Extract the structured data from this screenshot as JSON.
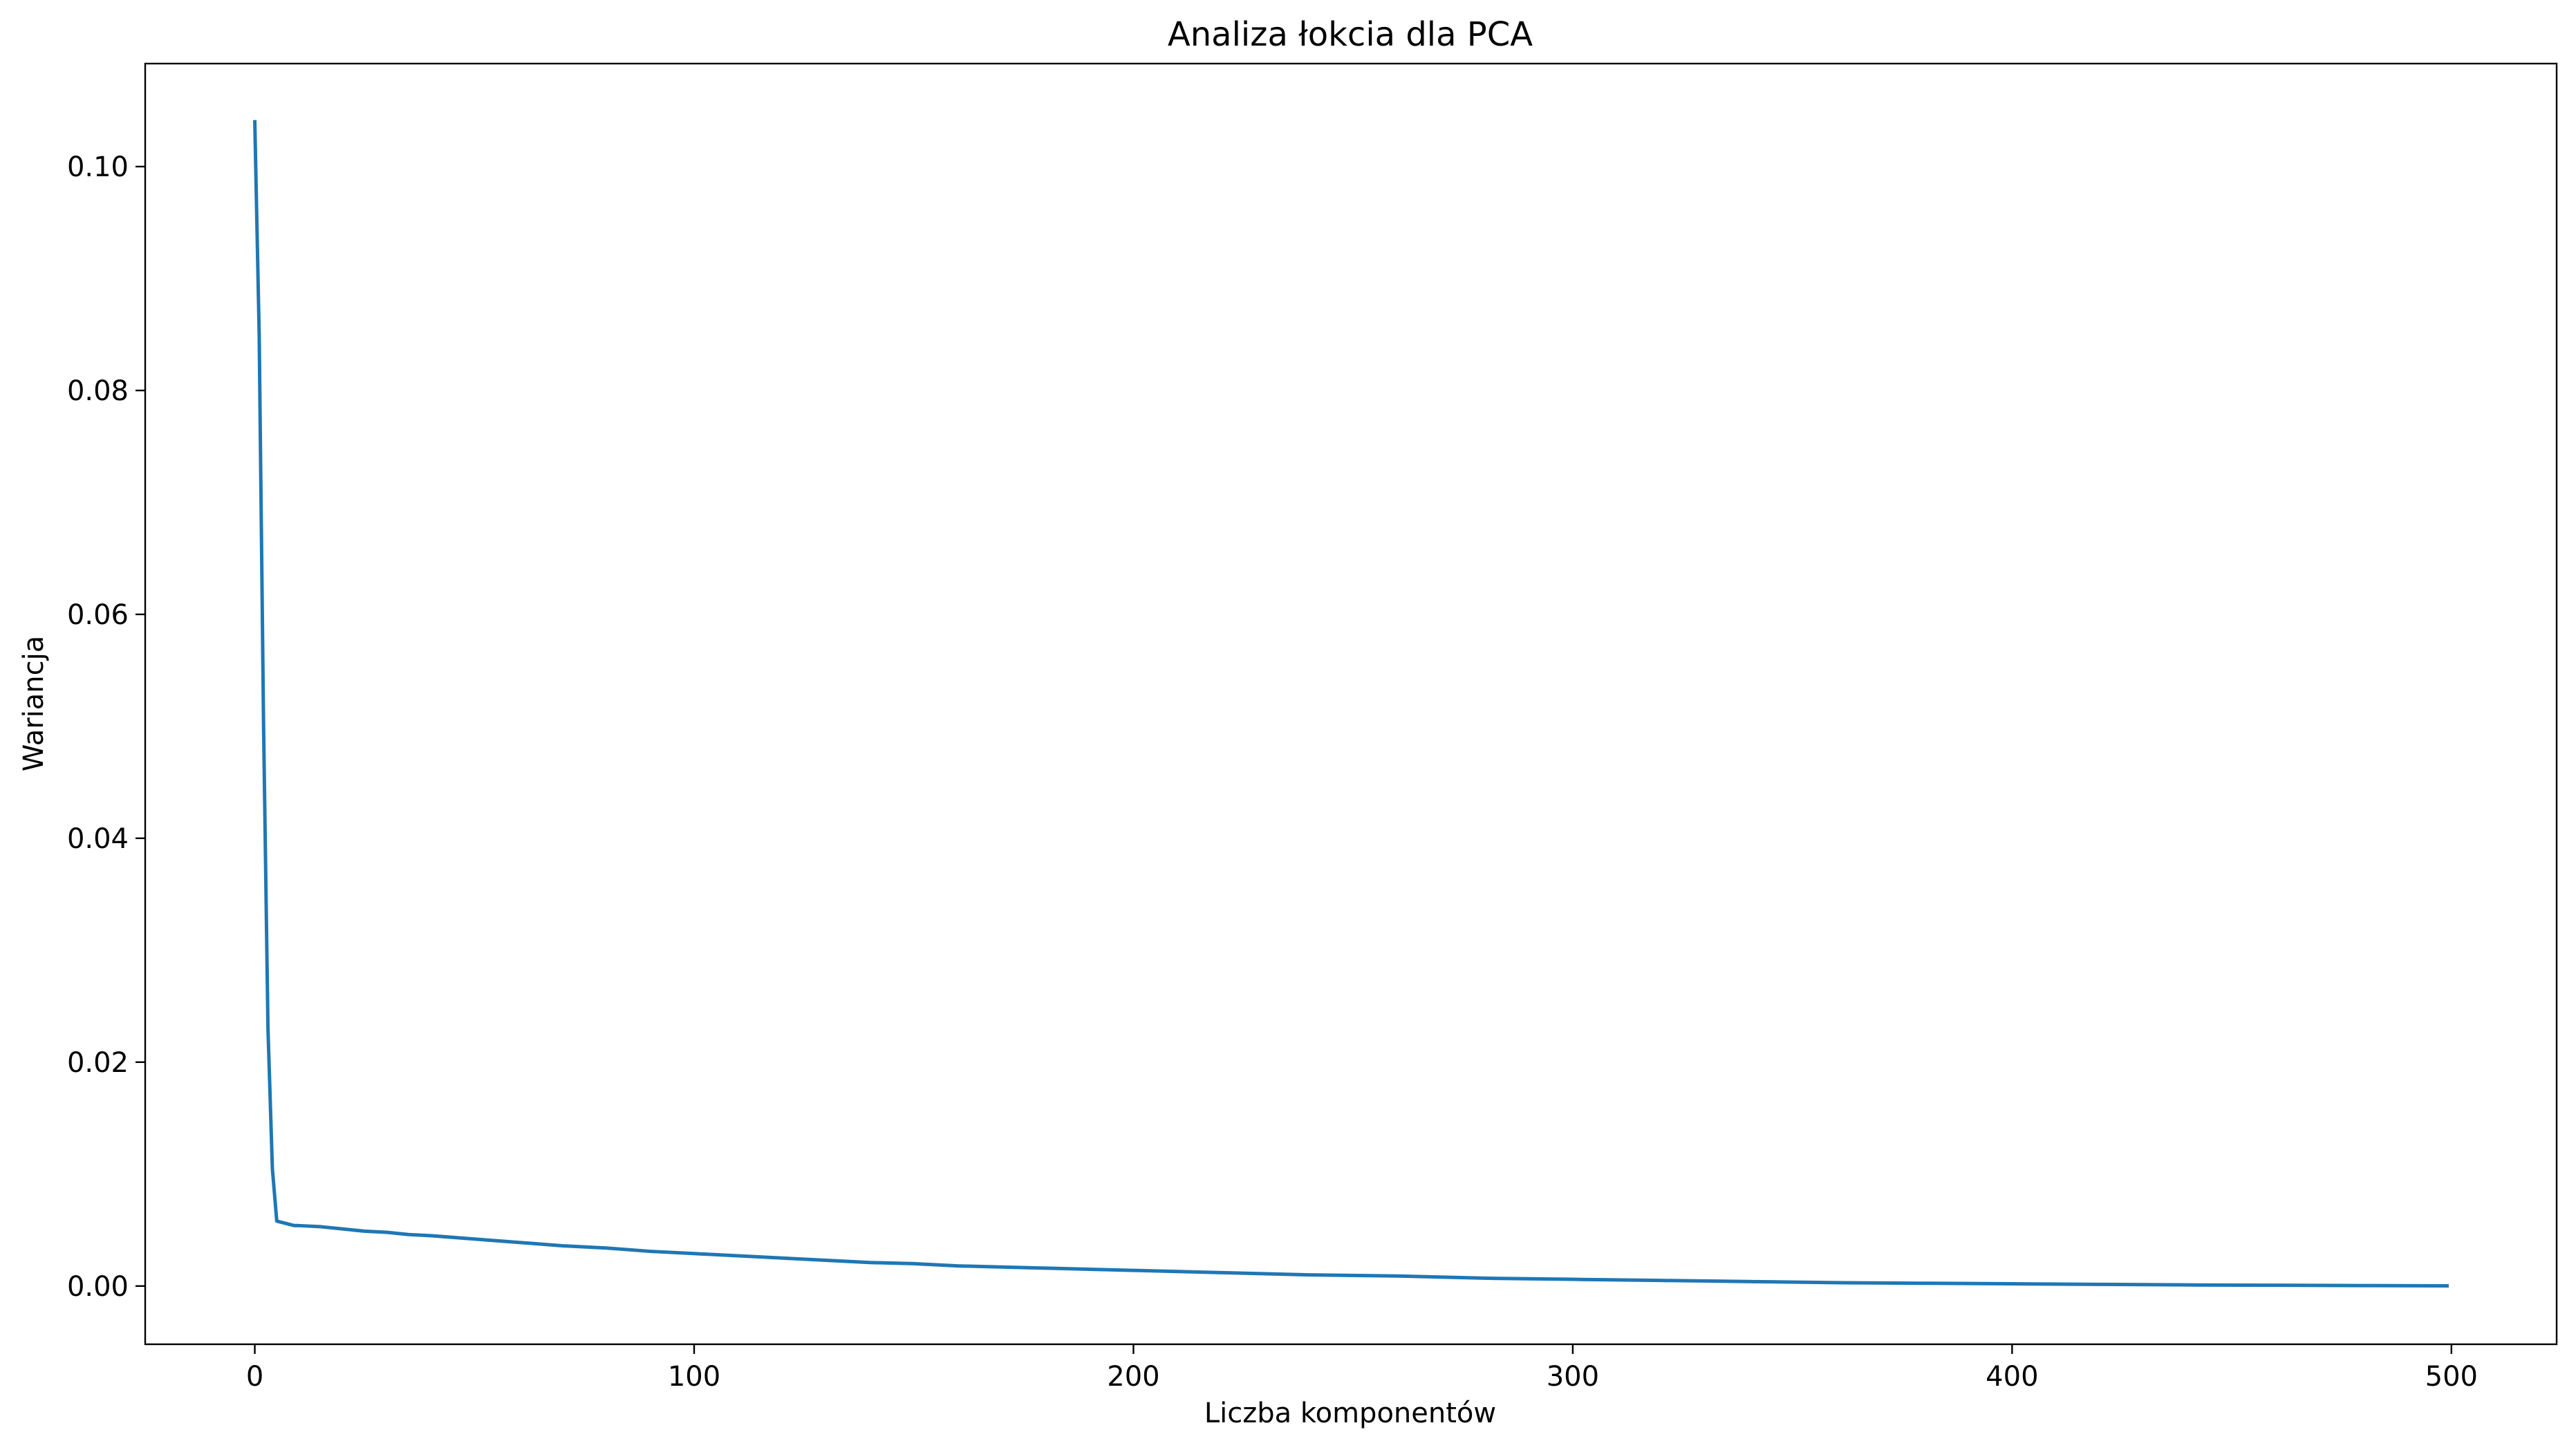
{
  "chart_data": {
    "type": "line",
    "title": "Analiza łokcia dla PCA",
    "xlabel": "Liczba komponentów",
    "ylabel": "Wariancja",
    "xlim": [
      -24.95,
      523.95
    ],
    "ylim": [
      -0.0052,
      0.1092
    ],
    "xticks": [
      0,
      100,
      200,
      300,
      400,
      500
    ],
    "xtick_labels": [
      "0",
      "100",
      "200",
      "300",
      "400",
      "500"
    ],
    "yticks": [
      0.0,
      0.02,
      0.04,
      0.06,
      0.08,
      0.1
    ],
    "ytick_labels": [
      "0.00",
      "0.02",
      "0.04",
      "0.06",
      "0.08",
      "0.10"
    ],
    "grid": false,
    "legend": "none",
    "series": [
      {
        "color": "#1f77b4",
        "x": [
          0,
          1,
          2,
          3,
          4,
          5,
          6,
          7,
          8,
          9,
          10,
          15,
          20,
          25,
          30,
          35,
          40,
          50,
          60,
          70,
          80,
          90,
          100,
          110,
          120,
          130,
          140,
          150,
          160,
          170,
          180,
          190,
          200,
          220,
          240,
          260,
          280,
          300,
          320,
          340,
          360,
          380,
          400,
          420,
          440,
          460,
          480,
          499
        ],
        "y": [
          0.104,
          0.085,
          0.05,
          0.023,
          0.0105,
          0.0058,
          0.0057,
          0.0056,
          0.0055,
          0.0054,
          0.0054,
          0.0053,
          0.0051,
          0.0049,
          0.0048,
          0.0046,
          0.0045,
          0.0042,
          0.0039,
          0.0036,
          0.0034,
          0.0031,
          0.0029,
          0.0027,
          0.0025,
          0.0023,
          0.0021,
          0.002,
          0.0018,
          0.0017,
          0.0016,
          0.0015,
          0.0014,
          0.0012,
          0.001,
          0.0009,
          0.0007,
          0.0006,
          0.0005,
          0.0004,
          0.0003,
          0.00025,
          0.0002,
          0.00015,
          0.0001,
          7e-05,
          4e-05,
          2e-05
        ]
      }
    ]
  }
}
